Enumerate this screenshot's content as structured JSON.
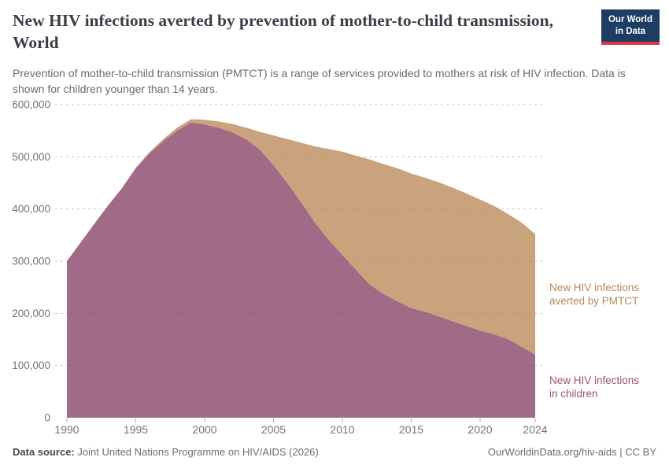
{
  "header": {
    "title": "New HIV infections averted by prevention of mother-to-child transmission, World",
    "subtitle": "Prevention of mother-to-child transmission (PMTCT) is a range of services provided to mothers at risk of HIV infection. Data is shown for children younger than 14 years.",
    "logo": {
      "line1": "Our World",
      "line2": "in Data",
      "bg_color": "#1d3d63",
      "stripe_color": "#e0383e"
    }
  },
  "footer": {
    "source_label": "Data source:",
    "source_text": "Joint United Nations Programme on HIV/AIDS (2026)",
    "credit": "OurWorldinData.org/hiv-aids | CC BY"
  },
  "chart_data": {
    "type": "area",
    "stacked": true,
    "x": [
      1990,
      1991,
      1992,
      1993,
      1994,
      1995,
      1996,
      1997,
      1998,
      1999,
      2000,
      2001,
      2002,
      2003,
      2004,
      2005,
      2006,
      2007,
      2008,
      2009,
      2010,
      2011,
      2012,
      2013,
      2014,
      2015,
      2016,
      2017,
      2018,
      2019,
      2020,
      2021,
      2022,
      2023,
      2024
    ],
    "series": [
      {
        "name": "New HIV infections in children",
        "color": "#a16a86",
        "label_color": "#9c5278",
        "values": [
          300000,
          336000,
          372000,
          407000,
          440000,
          478000,
          507000,
          530000,
          550000,
          566000,
          562000,
          556000,
          547000,
          534000,
          514000,
          484000,
          450000,
          413000,
          374000,
          341000,
          312000,
          283000,
          255000,
          237000,
          223000,
          210000,
          203000,
          194000,
          185000,
          176000,
          167000,
          160000,
          151000,
          136000,
          121000
        ]
      },
      {
        "name": "New HIV infections averted by PMTCT",
        "color": "#c9a37b",
        "label_color": "#b7895a",
        "values": [
          0,
          0,
          0,
          0,
          0,
          1000,
          2000,
          4000,
          6000,
          6000,
          9000,
          12000,
          16000,
          22000,
          34000,
          57000,
          84000,
          114000,
          146000,
          174000,
          198000,
          219000,
          240000,
          249000,
          255000,
          258000,
          257000,
          257000,
          256000,
          254000,
          251000,
          246000,
          240000,
          238000,
          231000
        ]
      }
    ],
    "xlim": [
      1990,
      2024
    ],
    "ylim": [
      0,
      600000
    ],
    "xticks": [
      1990,
      1995,
      2000,
      2005,
      2010,
      2015,
      2020,
      2024
    ],
    "yticks": [
      0,
      100000,
      200000,
      300000,
      400000,
      500000,
      600000
    ],
    "grid": "horizontal-dashed",
    "legend": "right-inline-annotations"
  }
}
